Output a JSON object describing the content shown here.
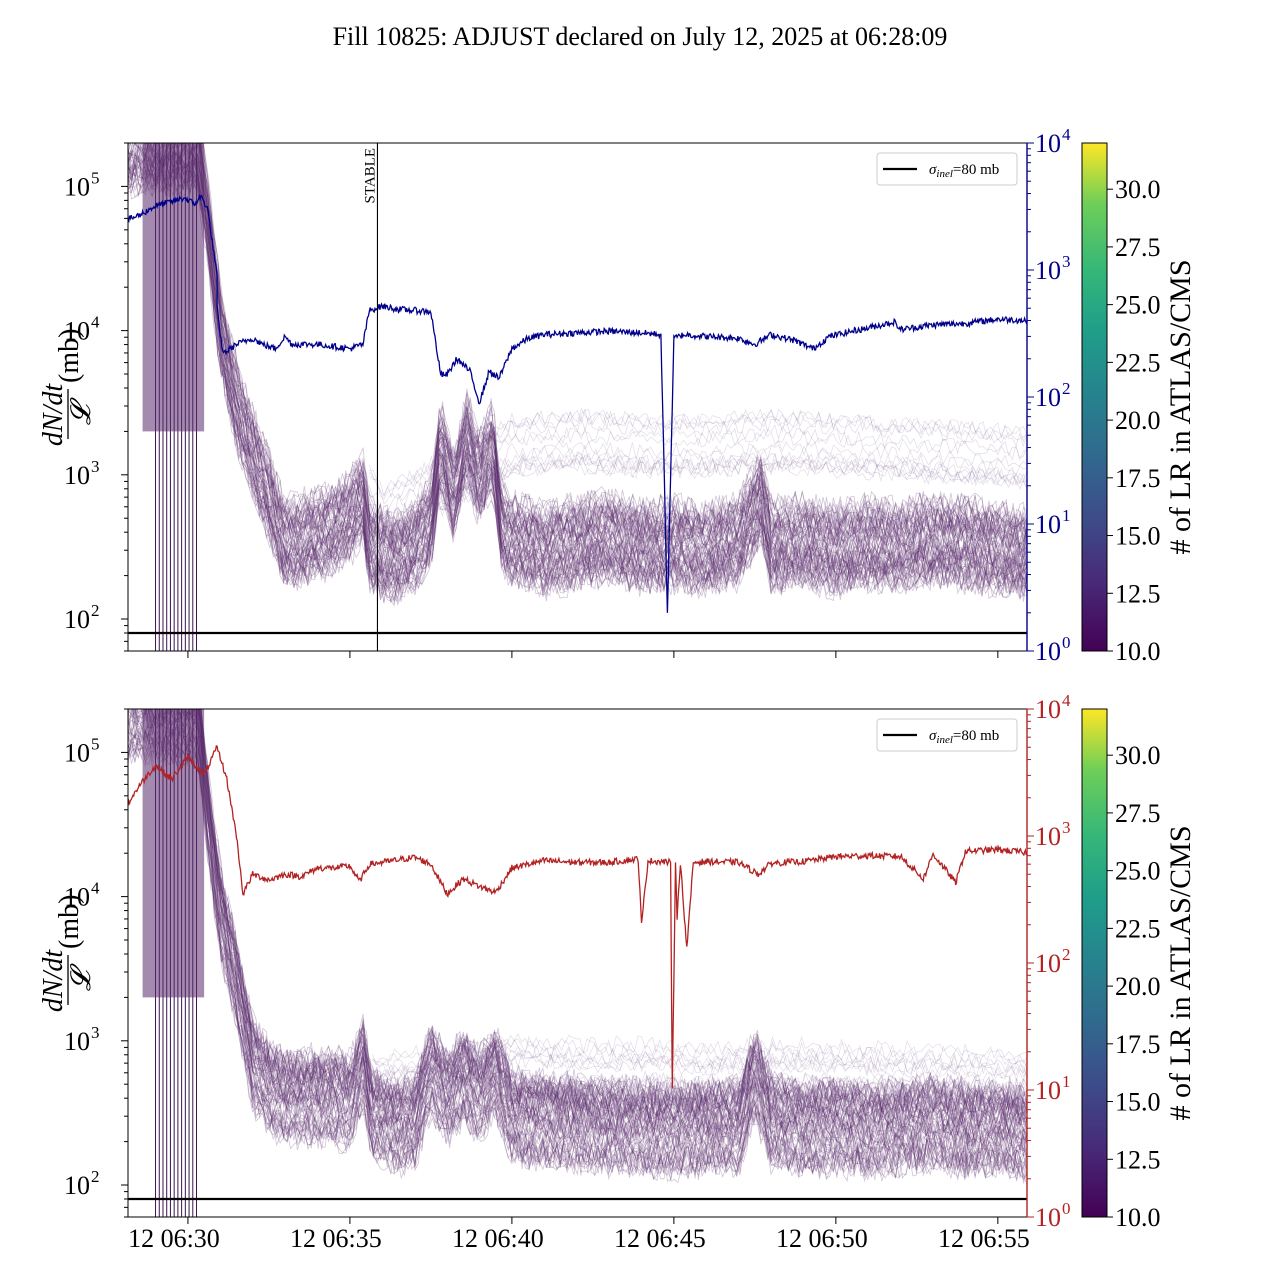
{
  "figure": {
    "title": "Fill 10825: ADJUST declared on July 12, 2025 at 06:28:09"
  },
  "chart_data": [
    {
      "type": "line",
      "panel": "top",
      "ylabel_numerator": "dN/dt",
      "ylabel_denominator": "𝓛",
      "ylabel_unit": "(mb)",
      "yscale": "log",
      "ylim": [
        60,
        200000
      ],
      "y_ticks": [
        100,
        1000,
        10000,
        100000
      ],
      "y_tick_labels": [
        "10",
        "10",
        "10",
        "10"
      ],
      "y_tick_exponents": [
        "2",
        "3",
        "4",
        "5"
      ],
      "x_tick_labels": [
        "12 06:30",
        "12 06:35",
        "12 06:40",
        "12 06:45",
        "12 06:50",
        "12 06:55"
      ],
      "xlim_minutes": [
        28.15,
        55.9
      ],
      "x_tick_minutes": [
        30,
        35,
        40,
        45,
        50,
        55
      ],
      "x_tick_labels_visible": false,
      "reference_line": {
        "label": "σinel=80 mb",
        "label_sym": "σ",
        "label_sub": "inel",
        "label_rest": "=80 mb",
        "value": 80,
        "color": "#000000"
      },
      "annotation": {
        "text": "STABLE",
        "x_minute": 35.85
      },
      "secondary_axis": {
        "color": "#00008b",
        "yscale": "log",
        "ylim": [
          1,
          10000
        ],
        "tick_labels": [
          "10",
          "10",
          "10",
          "10",
          "10"
        ],
        "tick_exponents": [
          "0",
          "1",
          "2",
          "3",
          "4"
        ],
        "tick_values": [
          1,
          10,
          100,
          1000,
          10000
        ]
      },
      "secondary_series": {
        "color": "#00008b",
        "points": [
          [
            28.15,
            2500
          ],
          [
            28.5,
            2700
          ],
          [
            29,
            3200
          ],
          [
            29.4,
            3400
          ],
          [
            29.9,
            3700
          ],
          [
            30.2,
            3300
          ],
          [
            30.4,
            3800
          ],
          [
            30.6,
            3100
          ],
          [
            30.9,
            900
          ],
          [
            30.9,
            500
          ],
          [
            31,
            300
          ],
          [
            31.1,
            220
          ],
          [
            31.5,
            260
          ],
          [
            32,
            290
          ],
          [
            32.3,
            260
          ],
          [
            32.7,
            240
          ],
          [
            33,
            300
          ],
          [
            33.2,
            260
          ],
          [
            33.5,
            260
          ],
          [
            34,
            260
          ],
          [
            34.5,
            250
          ],
          [
            35,
            240
          ],
          [
            35.4,
            260
          ],
          [
            35.6,
            480
          ],
          [
            36,
            520
          ],
          [
            36.5,
            490
          ],
          [
            37,
            480
          ],
          [
            37.5,
            470
          ],
          [
            37.8,
            150
          ],
          [
            38,
            150
          ],
          [
            38.3,
            200
          ],
          [
            38.7,
            160
          ],
          [
            39,
            90
          ],
          [
            39.3,
            160
          ],
          [
            39.6,
            140
          ],
          [
            40,
            240
          ],
          [
            40.5,
            290
          ],
          [
            41,
            310
          ],
          [
            42,
            320
          ],
          [
            43,
            330
          ],
          [
            44,
            320
          ],
          [
            44.6,
            310
          ],
          [
            44.8,
            2
          ],
          [
            45,
            290
          ],
          [
            45.3,
            310
          ],
          [
            46,
            300
          ],
          [
            47,
            290
          ],
          [
            47.5,
            260
          ],
          [
            48,
            310
          ],
          [
            48.7,
            280
          ],
          [
            49.3,
            240
          ],
          [
            49.8,
            300
          ],
          [
            50.5,
            330
          ],
          [
            51,
            350
          ],
          [
            51.8,
            390
          ],
          [
            52,
            340
          ],
          [
            53,
            370
          ],
          [
            54,
            380
          ],
          [
            55,
            410
          ],
          [
            55.9,
            400
          ]
        ]
      },
      "colorbar": {
        "label": "# of LR in ATLAS/CMS",
        "min": 10.0,
        "max": 32.0,
        "ticks": [
          "10.0",
          "12.5",
          "15.0",
          "17.5",
          "20.0",
          "22.5",
          "25.0",
          "27.5",
          "30.0"
        ]
      },
      "bundle_color": "#5b2a6d",
      "bundle_series": {
        "curves": 70,
        "median": [
          [
            28.15,
            180000
          ],
          [
            30.3,
            180000
          ],
          [
            30.6,
            60000
          ],
          [
            31,
            10000
          ],
          [
            31.5,
            3000
          ],
          [
            32,
            1400
          ],
          [
            32.5,
            700
          ],
          [
            33,
            330
          ],
          [
            33.5,
            350
          ],
          [
            34,
            380
          ],
          [
            34.5,
            420
          ],
          [
            35,
            500
          ],
          [
            35.4,
            700
          ],
          [
            35.6,
            320
          ],
          [
            36,
            280
          ],
          [
            36.5,
            260
          ],
          [
            37,
            320
          ],
          [
            37.5,
            450
          ],
          [
            37.8,
            1600
          ],
          [
            38.2,
            700
          ],
          [
            38.6,
            1800
          ],
          [
            39,
            900
          ],
          [
            39.4,
            1600
          ],
          [
            39.7,
            400
          ],
          [
            40,
            350
          ],
          [
            41,
            300
          ],
          [
            42,
            330
          ],
          [
            43,
            360
          ],
          [
            44,
            310
          ],
          [
            45,
            330
          ],
          [
            46,
            300
          ],
          [
            47,
            340
          ],
          [
            47.7,
            700
          ],
          [
            48,
            320
          ],
          [
            49,
            340
          ],
          [
            50,
            300
          ],
          [
            51,
            330
          ],
          [
            52,
            310
          ],
          [
            53,
            350
          ],
          [
            54,
            330
          ],
          [
            55,
            300
          ],
          [
            55.9,
            280
          ]
        ]
      },
      "upper_band": {
        "median": [
          [
            35.6,
            700
          ],
          [
            36,
            500
          ],
          [
            38,
            900
          ],
          [
            39.5,
            1300
          ],
          [
            40,
            1600
          ],
          [
            42,
            1700
          ],
          [
            44,
            1600
          ],
          [
            46,
            1600
          ],
          [
            48,
            1700
          ],
          [
            50,
            1600
          ],
          [
            52,
            1500
          ],
          [
            54,
            1400
          ],
          [
            55.9,
            1300
          ]
        ]
      },
      "legend": {
        "placement": "upper right"
      }
    },
    {
      "type": "line",
      "panel": "bottom",
      "ylabel_numerator": "dN/dt",
      "ylabel_denominator": "𝓛",
      "ylabel_unit": "(mb)",
      "yscale": "log",
      "ylim": [
        60,
        200000
      ],
      "y_ticks": [
        100,
        1000,
        10000,
        100000
      ],
      "y_tick_labels": [
        "10",
        "10",
        "10",
        "10"
      ],
      "y_tick_exponents": [
        "2",
        "3",
        "4",
        "5"
      ],
      "x_tick_labels": [
        "12 06:30",
        "12 06:35",
        "12 06:40",
        "12 06:45",
        "12 06:50",
        "12 06:55"
      ],
      "xlim_minutes": [
        28.15,
        55.9
      ],
      "x_tick_minutes": [
        30,
        35,
        40,
        45,
        50,
        55
      ],
      "reference_line": {
        "label": "σinel=80 mb",
        "label_sym": "σ",
        "label_sub": "inel",
        "label_rest": "=80 mb",
        "value": 80,
        "color": "#000000"
      },
      "secondary_axis": {
        "color": "#b22222",
        "yscale": "log",
        "ylim": [
          1,
          10000
        ],
        "tick_labels": [
          "10",
          "10",
          "10",
          "10",
          "10"
        ],
        "tick_exponents": [
          "0",
          "1",
          "2",
          "3",
          "4"
        ],
        "tick_values": [
          1,
          10,
          100,
          1000,
          10000
        ]
      },
      "secondary_series": {
        "color": "#b22222",
        "points": [
          [
            28.15,
            1800
          ],
          [
            28.5,
            2500
          ],
          [
            29,
            3600
          ],
          [
            29.5,
            2800
          ],
          [
            30,
            4200
          ],
          [
            30.5,
            3000
          ],
          [
            30.9,
            5000
          ],
          [
            31.2,
            2800
          ],
          [
            31.5,
            1000
          ],
          [
            31.7,
            350
          ],
          [
            32,
            500
          ],
          [
            32.5,
            450
          ],
          [
            33,
            500
          ],
          [
            33.5,
            480
          ],
          [
            34,
            560
          ],
          [
            34.5,
            560
          ],
          [
            35,
            580
          ],
          [
            35.3,
            440
          ],
          [
            35.6,
            600
          ],
          [
            36,
            620
          ],
          [
            37,
            680
          ],
          [
            37.5,
            600
          ],
          [
            38,
            350
          ],
          [
            38.5,
            460
          ],
          [
            39,
            400
          ],
          [
            39.5,
            360
          ],
          [
            40,
            560
          ],
          [
            41,
            640
          ],
          [
            42,
            620
          ],
          [
            43,
            620
          ],
          [
            43.9,
            660
          ],
          [
            44,
            200
          ],
          [
            44.2,
            640
          ],
          [
            44.9,
            620
          ],
          [
            44.95,
            10
          ],
          [
            45.05,
            620
          ],
          [
            45.1,
            230
          ],
          [
            45.2,
            620
          ],
          [
            45.4,
            130
          ],
          [
            45.6,
            620
          ],
          [
            46,
            630
          ],
          [
            47,
            620
          ],
          [
            47.6,
            500
          ],
          [
            48,
            610
          ],
          [
            49,
            630
          ],
          [
            50,
            690
          ],
          [
            51,
            700
          ],
          [
            52,
            690
          ],
          [
            52.7,
            460
          ],
          [
            53,
            720
          ],
          [
            53.7,
            430
          ],
          [
            54,
            760
          ],
          [
            55,
            780
          ],
          [
            55.9,
            740
          ]
        ]
      },
      "colorbar": {
        "label": "# of LR in ATLAS/CMS",
        "min": 10.0,
        "max": 32.0,
        "ticks": [
          "10.0",
          "12.5",
          "15.0",
          "17.5",
          "20.0",
          "22.5",
          "25.0",
          "27.5",
          "30.0"
        ]
      },
      "bundle_color": "#5b2a6d",
      "bundle_series": {
        "curves": 70,
        "median": [
          [
            28.15,
            180000
          ],
          [
            30.3,
            180000
          ],
          [
            30.6,
            40000
          ],
          [
            31,
            8000
          ],
          [
            31.5,
            2500
          ],
          [
            32,
            700
          ],
          [
            32.5,
            480
          ],
          [
            33,
            400
          ],
          [
            34,
            420
          ],
          [
            35,
            380
          ],
          [
            35.4,
            700
          ],
          [
            35.7,
            300
          ],
          [
            36.5,
            260
          ],
          [
            37,
            270
          ],
          [
            37.5,
            650
          ],
          [
            38,
            400
          ],
          [
            38.5,
            560
          ],
          [
            39,
            420
          ],
          [
            39.5,
            600
          ],
          [
            40,
            300
          ],
          [
            41,
            280
          ],
          [
            42,
            270
          ],
          [
            43,
            260
          ],
          [
            44,
            250
          ],
          [
            45,
            240
          ],
          [
            46,
            260
          ],
          [
            47,
            250
          ],
          [
            47.5,
            600
          ],
          [
            48,
            280
          ],
          [
            49,
            250
          ],
          [
            50,
            260
          ],
          [
            51,
            240
          ],
          [
            52,
            250
          ],
          [
            53,
            270
          ],
          [
            54,
            240
          ],
          [
            55,
            250
          ],
          [
            55.9,
            230
          ]
        ]
      },
      "upper_band": {
        "median": [
          [
            35.7,
            550
          ],
          [
            36,
            520
          ],
          [
            38,
            600
          ],
          [
            40,
            700
          ],
          [
            42,
            650
          ],
          [
            44,
            650
          ],
          [
            46,
            600
          ],
          [
            48,
            650
          ],
          [
            50,
            620
          ],
          [
            52,
            600
          ],
          [
            54,
            580
          ],
          [
            55.9,
            550
          ]
        ]
      },
      "legend": {
        "placement": "upper right"
      }
    }
  ]
}
